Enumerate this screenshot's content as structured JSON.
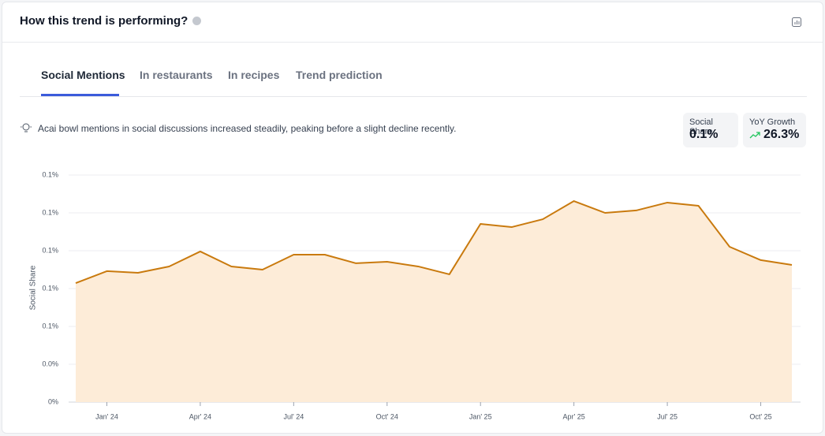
{
  "header": {
    "title": "How this trend is performing?"
  },
  "tabs": [
    "Social Mentions",
    "In restaurants",
    "In recipes",
    "Trend prediction"
  ],
  "insight": "Acai bowl mentions in social discussions increased steadily, peaking before a slight decline recently.",
  "stats": [
    {
      "label": "Social Share",
      "value": "0.1%"
    },
    {
      "label": "YoY Growth",
      "value": "26.3%"
    }
  ],
  "chart_data": {
    "type": "area",
    "y_label": "Social Share",
    "color": "#c97a0e",
    "fill": "#fdecd8",
    "grid": true,
    "categories": [
      null,
      "Jan' 24",
      null,
      null,
      "Apr' 24",
      null,
      null,
      "Jul' 24",
      null,
      null,
      "Oct' 24",
      null,
      null,
      "Jan' 25",
      null,
      null,
      "Apr' 25",
      null,
      null,
      "Jul' 25",
      null,
      null,
      "Oct' 25",
      null
    ],
    "values": [
      0.0786,
      0.0865,
      0.0854,
      0.0896,
      0.0995,
      0.0896,
      0.0875,
      0.0974,
      0.0974,
      0.0917,
      0.0927,
      0.0896,
      0.0844,
      0.1177,
      0.1156,
      0.1208,
      0.1328,
      0.125,
      0.1266,
      0.1318,
      0.1297,
      0.1026,
      0.0938,
      0.0906
    ],
    "ylim": [
      0,
      0.15
    ],
    "yticks": [
      {
        "value": 0,
        "label": "0%"
      },
      {
        "value": 0.025,
        "label": "0.0%"
      },
      {
        "value": 0.05,
        "label": "0.1%"
      },
      {
        "value": 0.075,
        "label": "0.1%"
      },
      {
        "value": 0.1,
        "label": "0.1%"
      },
      {
        "value": 0.125,
        "label": "0.1%"
      },
      {
        "value": 0.15,
        "label": "0.1%"
      }
    ]
  }
}
